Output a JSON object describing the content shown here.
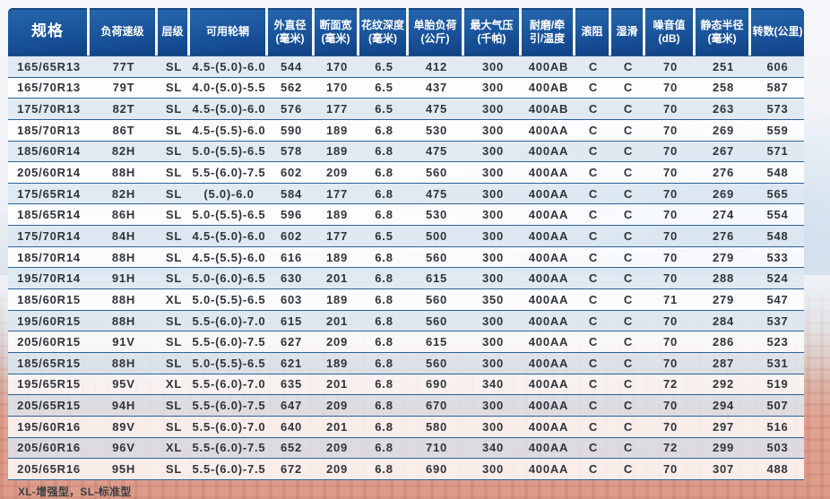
{
  "table": {
    "columns": [
      {
        "id": "spec",
        "lines": [
          "规格"
        ]
      },
      {
        "id": "load-speed-rating",
        "lines": [
          "负荷速级"
        ]
      },
      {
        "id": "ply-rating",
        "lines": [
          "层级"
        ]
      },
      {
        "id": "approved-rims",
        "lines": [
          "可用轮辋"
        ]
      },
      {
        "id": "overall-diameter",
        "lines": [
          "外直径",
          "(毫米)"
        ]
      },
      {
        "id": "section-width",
        "lines": [
          "断面宽",
          "(毫米)"
        ]
      },
      {
        "id": "tread-depth",
        "lines": [
          "花纹深度",
          "(毫米)"
        ]
      },
      {
        "id": "max-load",
        "lines": [
          "单胎负荷",
          "(公斤)"
        ]
      },
      {
        "id": "max-pressure",
        "lines": [
          "最大气压",
          "(千帕)"
        ]
      },
      {
        "id": "wear-traction-temp",
        "lines": [
          "耐磨/牵",
          "引/温度"
        ]
      },
      {
        "id": "rolling-resistance",
        "lines": [
          "滚阻"
        ]
      },
      {
        "id": "wet-grip",
        "lines": [
          "湿滑"
        ]
      },
      {
        "id": "noise-value",
        "lines": [
          "噪音值",
          "(dB)"
        ]
      },
      {
        "id": "static-radius",
        "lines": [
          "静态半径",
          "(毫米)"
        ]
      },
      {
        "id": "revolutions",
        "lines": [
          "转数(公里)"
        ]
      }
    ],
    "rows": [
      [
        "165/65R13",
        "77T",
        "SL",
        "4.5-(5.0)-6.0",
        "544",
        "170",
        "6.5",
        "412",
        "300",
        "400AB",
        "C",
        "C",
        "70",
        "251",
        "606"
      ],
      [
        "165/70R13",
        "79T",
        "SL",
        "4.0-(5.0)-5.5",
        "562",
        "170",
        "6.5",
        "437",
        "300",
        "400AB",
        "C",
        "C",
        "70",
        "258",
        "587"
      ],
      [
        "175/70R13",
        "82T",
        "SL",
        "4.5-(5.0)-6.0",
        "576",
        "177",
        "6.5",
        "475",
        "300",
        "400AB",
        "C",
        "C",
        "70",
        "263",
        "573"
      ],
      [
        "185/70R13",
        "86T",
        "SL",
        "4.5-(5.5)-6.0",
        "590",
        "189",
        "6.8",
        "530",
        "300",
        "400AA",
        "C",
        "C",
        "70",
        "269",
        "559"
      ],
      [
        "185/60R14",
        "82H",
        "SL",
        "5.0-(5.5)-6.5",
        "578",
        "189",
        "6.8",
        "475",
        "300",
        "400AA",
        "C",
        "C",
        "70",
        "267",
        "571"
      ],
      [
        "205/60R14",
        "88H",
        "SL",
        "5.5-(6.0)-7.5",
        "602",
        "209",
        "6.8",
        "560",
        "300",
        "400AA",
        "C",
        "C",
        "70",
        "276",
        "548"
      ],
      [
        "175/65R14",
        "82H",
        "SL",
        "(5.0)-6.0",
        "584",
        "177",
        "6.8",
        "475",
        "300",
        "400AA",
        "C",
        "C",
        "70",
        "269",
        "565"
      ],
      [
        "185/65R14",
        "86H",
        "SL",
        "5.0-(5.5)-6.5",
        "596",
        "189",
        "6.8",
        "530",
        "300",
        "400AA",
        "C",
        "C",
        "70",
        "274",
        "554"
      ],
      [
        "175/70R14",
        "84H",
        "SL",
        "4.5-(5.0)-6.0",
        "602",
        "177",
        "6.5",
        "500",
        "300",
        "400AA",
        "C",
        "C",
        "70",
        "276",
        "548"
      ],
      [
        "185/70R14",
        "88H",
        "SL",
        "4.5-(5.5)-6.0",
        "616",
        "189",
        "6.8",
        "560",
        "300",
        "400AA",
        "C",
        "C",
        "70",
        "279",
        "533"
      ],
      [
        "195/70R14",
        "91H",
        "SL",
        "5.0-(6.0)-6.5",
        "630",
        "201",
        "6.8",
        "615",
        "300",
        "400AA",
        "C",
        "C",
        "70",
        "288",
        "524"
      ],
      [
        "185/60R15",
        "88H",
        "XL",
        "5.0-(5.5)-6.5",
        "603",
        "189",
        "6.8",
        "560",
        "350",
        "400AA",
        "C",
        "C",
        "71",
        "279",
        "547"
      ],
      [
        "195/60R15",
        "88H",
        "SL",
        "5.5-(6.0)-7.0",
        "615",
        "201",
        "6.8",
        "560",
        "300",
        "400AA",
        "C",
        "C",
        "70",
        "284",
        "537"
      ],
      [
        "205/60R15",
        "91V",
        "SL",
        "5.5-(6.0)-7.5",
        "627",
        "209",
        "6.8",
        "615",
        "300",
        "400AA",
        "C",
        "C",
        "70",
        "286",
        "523"
      ],
      [
        "185/65R15",
        "88H",
        "SL",
        "5.0-(5.5)-6.5",
        "621",
        "189",
        "6.8",
        "560",
        "300",
        "400AA",
        "C",
        "C",
        "70",
        "287",
        "531"
      ],
      [
        "195/65R15",
        "95V",
        "XL",
        "5.5-(6.0)-7.0",
        "635",
        "201",
        "6.8",
        "690",
        "340",
        "400AA",
        "C",
        "C",
        "72",
        "292",
        "519"
      ],
      [
        "205/65R15",
        "94H",
        "SL",
        "5.5-(6.0)-7.5",
        "647",
        "209",
        "6.8",
        "670",
        "300",
        "400AA",
        "C",
        "C",
        "70",
        "294",
        "507"
      ],
      [
        "195/60R16",
        "89V",
        "SL",
        "5.5-(6.0)-7.0",
        "640",
        "201",
        "6.8",
        "580",
        "300",
        "400AA",
        "C",
        "C",
        "70",
        "297",
        "516"
      ],
      [
        "205/60R16",
        "96V",
        "XL",
        "5.5-(6.0)-7.5",
        "652",
        "209",
        "6.8",
        "710",
        "340",
        "400AA",
        "C",
        "C",
        "72",
        "299",
        "503"
      ],
      [
        "205/65R16",
        "95H",
        "SL",
        "5.5-(6.0)-7.5",
        "672",
        "209",
        "6.8",
        "690",
        "300",
        "400AA",
        "C",
        "C",
        "70",
        "307",
        "488"
      ]
    ],
    "footnote": "XL-增强型，SL-标准型"
  },
  "colors": {
    "header_blue": "#1b579f",
    "header_blue_dark": "#114286",
    "row_tint": "#dde8f2",
    "row_white": "#ffffff",
    "grid_line": "#2e6296",
    "text_dark": "#2f343a",
    "building_red": "#dd9c8a"
  }
}
